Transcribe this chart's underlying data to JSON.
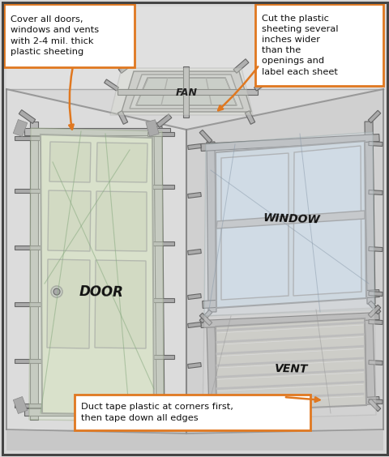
{
  "bg_color": "#d8d8d8",
  "border_color": "#444444",
  "ann1_text": "Cover all doors,\nwindows and vents\nwith 2-4 mil. thick\nplastic sheeting",
  "ann2_text": "Cut the plastic\nsheeting several\ninches wider\nthan the\nopenings and\nlabel each sheet",
  "ann3_text": "Duct tape plastic at corners first,\nthen tape down all edges",
  "annotation_bg": "#ffffff",
  "annotation_border": "#e07820",
  "arrow_color": "#e07820",
  "figsize": [
    4.81,
    5.64
  ],
  "dpi": 100
}
